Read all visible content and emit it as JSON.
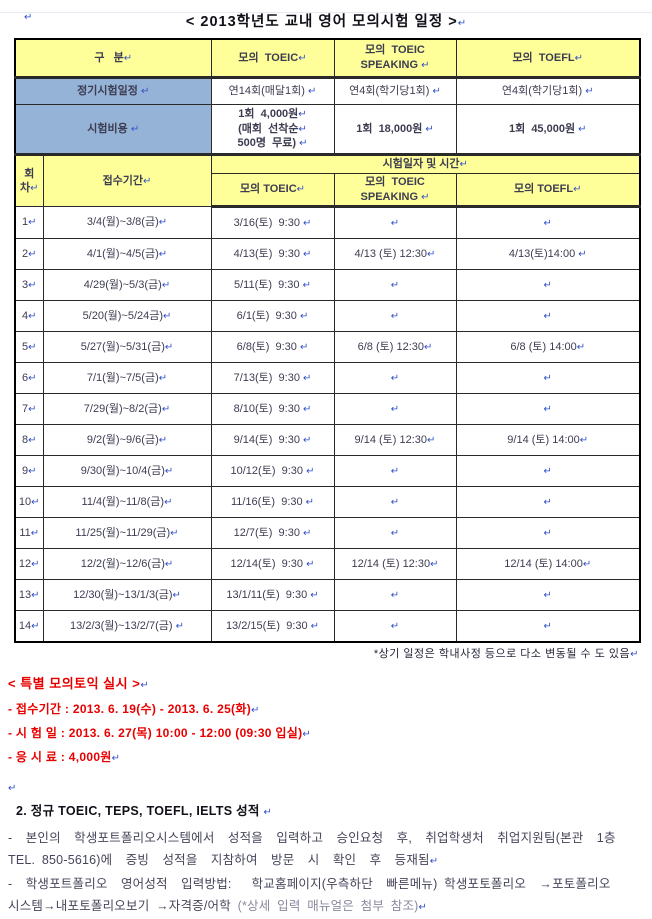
{
  "meta": {
    "crlf": "↵"
  },
  "title": "< 2013학년도  교내  영어  모의시험  일정 >↵",
  "colors": {
    "header_bg": "#FFFF99",
    "label_bg": "#95B3D7",
    "accent_red": "#FF0000",
    "mark_blue": "#3050C8"
  },
  "table": {
    "columns": [
      "구   분↵",
      "모의  TOEIC↵",
      "모의  TOEIC\nSPEAKING ↵",
      "모의  TOEFL↵"
    ],
    "info_rows": [
      {
        "label": "정기시험일정 ↵",
        "cells": [
          "연14회(매달1회) ↵",
          "연4회(학기당1회) ↵",
          "연4회(학기당1회) ↵"
        ]
      },
      {
        "label": "시험비용 ↵",
        "cells": [
          "1회  4,000원↵\n(매회  선착순↵\n500명  무료) ↵",
          "1회  18,000원 ↵",
          "1회  45,000원 ↵"
        ]
      }
    ],
    "schedule_header": {
      "round": "회\n차↵",
      "period": "접수기간↵",
      "span": "시험일자 및 시간↵",
      "subs": [
        "모의 TOEIC↵",
        "모의  TOEIC\nSPEAKING ↵",
        "모의 TOEFL↵"
      ]
    },
    "schedule_rows": [
      {
        "no": "1↵",
        "period": "3/4(월)~3/8(금)↵",
        "toeic": "3/16(토)  9:30 ↵",
        "speaking": "↵",
        "toefl": "↵"
      },
      {
        "no": "2↵",
        "period": "4/1(월)~4/5(금)↵",
        "toeic": "4/13(토)  9:30 ↵",
        "speaking": "4/13 (토) 12:30↵",
        "toefl": "4/13(토)14:00 ↵"
      },
      {
        "no": "3↵",
        "period": "4/29(월)~5/3(금)↵",
        "toeic": "5/11(토)  9:30 ↵",
        "speaking": "↵",
        "toefl": "↵"
      },
      {
        "no": "4↵",
        "period": "5/20(월)~5/24금)↵",
        "toeic": "6/1(토)  9:30 ↵",
        "speaking": "↵",
        "toefl": "↵"
      },
      {
        "no": "5↵",
        "period": "5/27(월)~5/31(금)↵",
        "toeic": "6/8(토)  9:30 ↵",
        "speaking": "6/8 (토) 12:30↵",
        "toefl": "6/8 (토) 14:00↵"
      },
      {
        "no": "6↵",
        "period": "7/1(월)~7/5(금)↵",
        "toeic": "7/13(토)  9:30 ↵",
        "speaking": "↵",
        "toefl": "↵"
      },
      {
        "no": "7↵",
        "period": "7/29(월)~8/2(금)↵",
        "toeic": "8/10(토)  9:30 ↵",
        "speaking": "↵",
        "toefl": "↵"
      },
      {
        "no": "8↵",
        "period": "9/2(월)~9/6(금)↵",
        "toeic": "9/14(토)  9:30 ↵",
        "speaking": "9/14 (토) 12:30↵",
        "toefl": "9/14 (토) 14:00↵"
      },
      {
        "no": "9↵",
        "period": "9/30(월)~10/4(금)↵",
        "toeic": "10/12(토)  9:30 ↵",
        "speaking": "↵",
        "toefl": "↵"
      },
      {
        "no": "10↵",
        "period": "11/4(월)~11/8(금)↵",
        "toeic": "11/16(토)  9:30 ↵",
        "speaking": "↵",
        "toefl": "↵"
      },
      {
        "no": "11↵",
        "period": "11/25(월)~11/29(금)↵",
        "toeic": "12/7(토)  9:30 ↵",
        "speaking": "↵",
        "toefl": "↵"
      },
      {
        "no": "12↵",
        "period": "12/2(월)~12/6(금)↵",
        "toeic": "12/14(토)  9:30 ↵",
        "speaking": "12/14 (토) 12:30↵",
        "toefl": "12/14 (토) 14:00↵"
      },
      {
        "no": "13↵",
        "period": "12/30(월)~13/1/3(금)↵",
        "toeic": "13/1/11(토)  9:30 ↵",
        "speaking": "↵",
        "toefl": "↵"
      },
      {
        "no": "14↵",
        "period": "13/2/3(월)~13/2/7(금) ↵",
        "toeic": "13/2/15(토)  9:30 ↵",
        "speaking": "↵",
        "toefl": "↵"
      }
    ],
    "footnote": "*상기  일정은  학내사정  등으로  다소  변동될  수  도  있음↵"
  },
  "special": {
    "heading": "< 특별 모의토익 실시 >↵",
    "lines": [
      "- 접수기간 : 2013. 6. 19(수) - 2013. 6. 25(화)↵",
      "- 시 험 일 : 2013. 6. 27(목) 10:00 - 12:00 (09:30 입실)↵",
      "- 응 시 료 : 4,000원↵"
    ]
  },
  "section2": {
    "heading": "2.  정규 TOEIC, TEPS, TOEFL, IELTS 성적 ↵",
    "para1": "-  본인의  학생포트폴리오시스템에서  성적을  입력하고  승인요청  후,  취업학생처  취업지원팀(본관  1층\nTEL. 850-5616)에  증빙  성적을  지참하여  방문  시  확인  후  등재됨↵",
    "para2_main": "-  학생포트폴리오  영어성적  입력방법:   학교홈페이지(우측하단  빠른메뉴) 학생포토폴리오  →포토폴리오\n시스템→내포토폴리오보기 →자격증/어학 ",
    "para2_note": "(*상세 입력 매뉴얼은 첨부 참조)↵"
  }
}
